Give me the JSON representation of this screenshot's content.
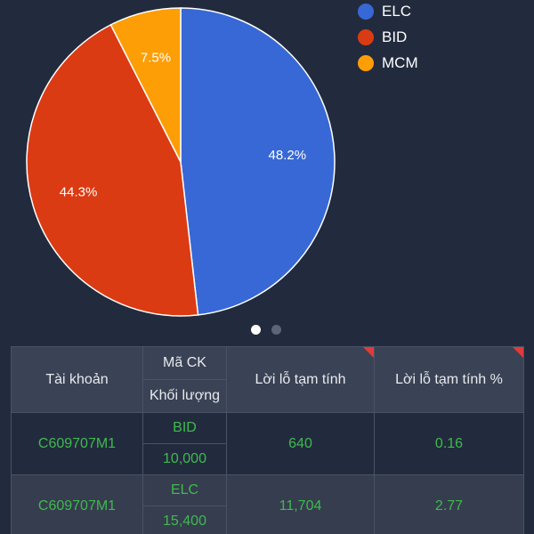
{
  "chart_data": {
    "type": "pie",
    "slices": [
      {
        "label": "ELC",
        "value": 48.2,
        "display": "48.2%",
        "color": "#3768d5"
      },
      {
        "label": "BID",
        "value": 44.3,
        "display": "44.3%",
        "color": "#db3b13"
      },
      {
        "label": "MCM",
        "value": 7.5,
        "display": "7.5%",
        "color": "#fd9e07"
      }
    ],
    "legend_placement": "top-right"
  },
  "pager": {
    "count": 2,
    "active": 0
  },
  "table": {
    "headers": {
      "account": "Tài khoản",
      "symbol": "Mã CK",
      "volume": "Khối lượng",
      "pnl": "Lời lỗ tạm tính",
      "pnl_pct": "Lời lỗ tạm tính %"
    },
    "rows": [
      {
        "account": "C609707M1",
        "symbol": "BID",
        "volume": "10,000",
        "pnl": "640",
        "pnl_pct": "0.16"
      },
      {
        "account": "C609707M1",
        "symbol": "ELC",
        "volume": "15,400",
        "pnl": "11,704",
        "pnl_pct": "2.77"
      }
    ]
  },
  "colors": {
    "background": "#222b3d",
    "header_bg": "#3a4355",
    "alt_row_bg": "#353d4e",
    "gain_text": "#3fba4d",
    "sort_marker": "#e23a3a"
  }
}
